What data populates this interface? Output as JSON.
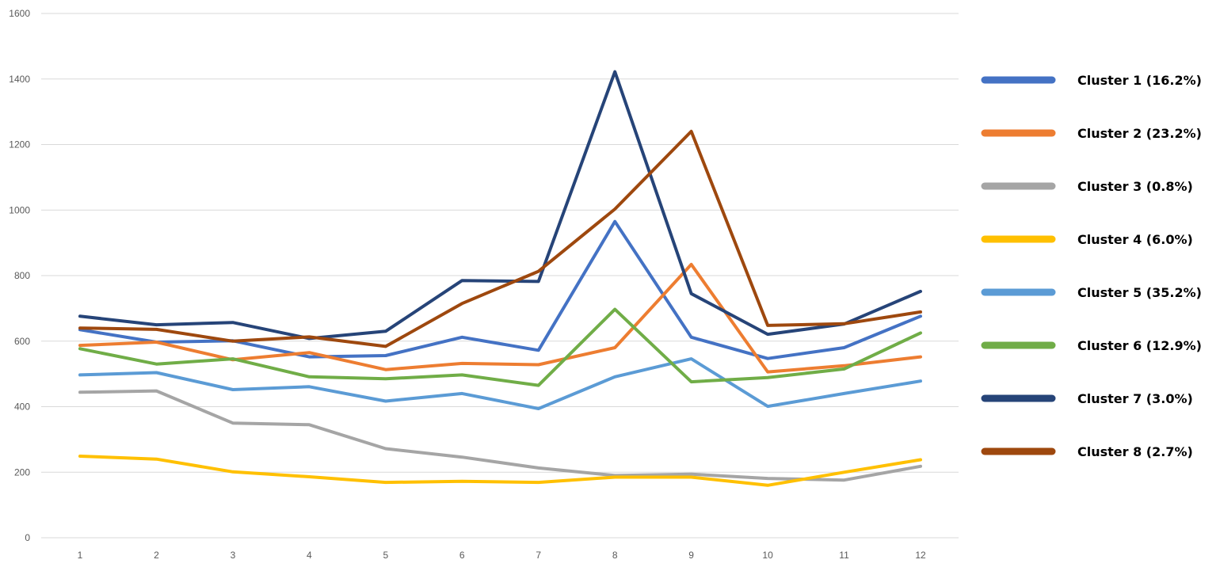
{
  "chart_data": {
    "type": "line",
    "title": "",
    "xlabel": "",
    "ylabel": "",
    "categories": [
      "1",
      "2",
      "3",
      "4",
      "5",
      "6",
      "7",
      "8",
      "9",
      "10",
      "11",
      "12"
    ],
    "ylim": [
      0,
      1600
    ],
    "yticks": [
      0,
      200,
      400,
      600,
      800,
      1000,
      1200,
      1400,
      1600
    ],
    "grid": true,
    "legend_position": "right",
    "series": [
      {
        "name": "Cluster 1 (16.2%)",
        "color": "#4472c4",
        "values": [
          635,
          597,
          601,
          552,
          556,
          612,
          572,
          965,
          612,
          547,
          580,
          676
        ]
      },
      {
        "name": "Cluster 2 (23.2%)",
        "color": "#ed7d31",
        "values": [
          587,
          597,
          543,
          565,
          513,
          532,
          528,
          580,
          834,
          506,
          525,
          552
        ]
      },
      {
        "name": "Cluster 3 (0.8%)",
        "color": "#a5a5a5",
        "values": [
          444,
          448,
          350,
          345,
          272,
          246,
          213,
          190,
          194,
          181,
          176,
          218
        ]
      },
      {
        "name": "Cluster 4 (6.0%)",
        "color": "#ffc000",
        "values": [
          249,
          240,
          201,
          186,
          169,
          172,
          169,
          185,
          185,
          160,
          200,
          238
        ]
      },
      {
        "name": "Cluster 5 (35.2%)",
        "color": "#5b9bd5",
        "values": [
          497,
          504,
          452,
          461,
          417,
          440,
          394,
          491,
          546,
          401,
          440,
          478
        ]
      },
      {
        "name": "Cluster 6 (12.9%)",
        "color": "#70ad47",
        "values": [
          577,
          530,
          546,
          491,
          485,
          497,
          465,
          697,
          476,
          489,
          515,
          625
        ]
      },
      {
        "name": "Cluster 7 (3.0%)",
        "color": "#264478",
        "values": [
          676,
          650,
          657,
          608,
          630,
          785,
          782,
          1422,
          745,
          621,
          652,
          752
        ]
      },
      {
        "name": "Cluster 8 (2.7%)",
        "color": "#9e480e",
        "values": [
          640,
          636,
          600,
          613,
          584,
          715,
          813,
          1003,
          1240,
          648,
          653,
          689
        ]
      }
    ]
  }
}
